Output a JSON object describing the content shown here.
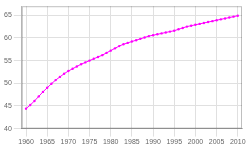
{
  "chart_data": {
    "type": "line",
    "x": [
      1960,
      1961,
      1962,
      1963,
      1964,
      1965,
      1966,
      1967,
      1968,
      1969,
      1970,
      1971,
      1972,
      1973,
      1974,
      1975,
      1976,
      1977,
      1978,
      1979,
      1980,
      1981,
      1982,
      1983,
      1984,
      1985,
      1986,
      1987,
      1988,
      1989,
      1990,
      1991,
      1992,
      1993,
      1994,
      1995,
      1996,
      1997,
      1998,
      1999,
      2000,
      2001,
      2002,
      2003,
      2004,
      2005,
      2006,
      2007,
      2008,
      2009,
      2010
    ],
    "values": [
      44.4,
      45.2,
      46.1,
      47.1,
      48.1,
      49.0,
      49.9,
      50.7,
      51.4,
      52.1,
      52.7,
      53.2,
      53.7,
      54.2,
      54.6,
      55.0,
      55.4,
      55.8,
      56.2,
      56.7,
      57.2,
      57.7,
      58.2,
      58.6,
      58.9,
      59.2,
      59.5,
      59.8,
      60.1,
      60.4,
      60.6,
      60.8,
      61.0,
      61.2,
      61.4,
      61.6,
      61.9,
      62.2,
      62.5,
      62.7,
      62.9,
      63.1,
      63.3,
      63.5,
      63.7,
      63.9,
      64.1,
      64.3,
      64.5,
      64.7,
      64.9
    ],
    "color": "#ff00ff",
    "marker": "circle",
    "xlim": [
      1959,
      2011
    ],
    "ylim": [
      40,
      67
    ],
    "xticks": [
      1960,
      1965,
      1970,
      1975,
      1980,
      1985,
      1990,
      1995,
      2000,
      2005,
      2010
    ],
    "yticks": [
      40,
      45,
      50,
      55,
      60,
      65
    ],
    "grid": true
  }
}
